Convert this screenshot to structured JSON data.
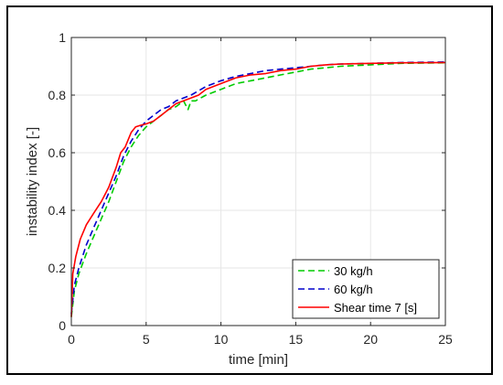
{
  "chart_data": {
    "type": "line",
    "title": "",
    "xlabel": "time [min]",
    "ylabel": "instability index [-]",
    "xlim": [
      0,
      25
    ],
    "ylim": [
      0,
      1
    ],
    "xticks": [
      0,
      5,
      10,
      15,
      20,
      25
    ],
    "yticks": [
      0,
      0.2,
      0.4,
      0.6,
      0.8,
      1
    ],
    "xtick_labels": [
      "0",
      "5",
      "10",
      "15",
      "20",
      "25"
    ],
    "ytick_labels": [
      "0",
      "0.2",
      "0.4",
      "0.6",
      "0.8",
      "1"
    ],
    "grid": true,
    "legend_position": "bottom-right",
    "series": [
      {
        "name": "30 kg/h",
        "color": "#00cc00",
        "style": "dashed",
        "x": [
          0,
          0.2,
          0.5,
          1,
          1.5,
          2,
          2.5,
          3,
          3.5,
          4,
          4.5,
          5,
          5.5,
          6,
          6.5,
          7,
          7.5,
          7.8,
          8,
          8.3,
          9,
          10,
          11,
          12,
          13,
          14,
          15,
          16,
          17,
          18,
          20,
          22,
          25
        ],
        "y": [
          0.03,
          0.12,
          0.18,
          0.25,
          0.31,
          0.37,
          0.43,
          0.5,
          0.57,
          0.62,
          0.66,
          0.69,
          0.71,
          0.73,
          0.75,
          0.76,
          0.78,
          0.75,
          0.78,
          0.78,
          0.8,
          0.82,
          0.84,
          0.85,
          0.86,
          0.87,
          0.88,
          0.89,
          0.895,
          0.9,
          0.905,
          0.91,
          0.912
        ]
      },
      {
        "name": "60 kg/h",
        "color": "#0000cc",
        "style": "dashed",
        "x": [
          0,
          0.2,
          0.5,
          1,
          1.5,
          2,
          2.5,
          3,
          3.5,
          4,
          4.5,
          5,
          5.5,
          6,
          6.5,
          7,
          7.5,
          8,
          9,
          10,
          11,
          12,
          13,
          14,
          15,
          16,
          17,
          18,
          20,
          22,
          25
        ],
        "y": [
          0.04,
          0.14,
          0.2,
          0.28,
          0.34,
          0.4,
          0.46,
          0.52,
          0.59,
          0.64,
          0.68,
          0.71,
          0.73,
          0.75,
          0.76,
          0.78,
          0.79,
          0.8,
          0.83,
          0.85,
          0.865,
          0.875,
          0.885,
          0.89,
          0.895,
          0.9,
          0.905,
          0.908,
          0.91,
          0.913,
          0.915
        ]
      },
      {
        "name": "Shear time 7 [s]",
        "color": "#ff0000",
        "style": "solid",
        "x": [
          0,
          0.1,
          0.3,
          0.6,
          1,
          1.5,
          2,
          2.5,
          3,
          3.3,
          3.6,
          4,
          4.3,
          4.6,
          5,
          5.5,
          6,
          6.5,
          7,
          7.5,
          8,
          8.5,
          9,
          10,
          11,
          12,
          13,
          14,
          15,
          16,
          17,
          18,
          20,
          22,
          25
        ],
        "y": [
          0.03,
          0.18,
          0.24,
          0.3,
          0.35,
          0.39,
          0.43,
          0.48,
          0.55,
          0.6,
          0.62,
          0.67,
          0.69,
          0.695,
          0.7,
          0.71,
          0.73,
          0.75,
          0.77,
          0.78,
          0.79,
          0.8,
          0.82,
          0.84,
          0.86,
          0.87,
          0.875,
          0.885,
          0.89,
          0.9,
          0.905,
          0.908,
          0.91,
          0.912,
          0.913
        ]
      }
    ]
  }
}
